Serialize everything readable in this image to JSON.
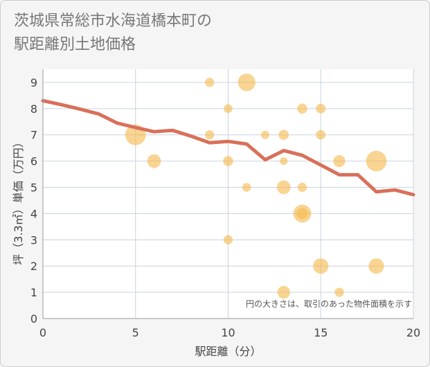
{
  "title": "茨城県常総市水海道橋本町の\n駅距離別土地価格",
  "chart_data": {
    "type": "scatter",
    "title": "茨城県常総市水海道橋本町の駅距離別土地価格",
    "xlabel": "駅距離（分）",
    "ylabel": "坪（3.3㎡）単価（万円）",
    "xlim": [
      0,
      20
    ],
    "ylim": [
      0,
      9.5
    ],
    "x_ticks": [
      "0",
      "5",
      "10",
      "15",
      "20"
    ],
    "y_ticks": [
      "0",
      "1",
      "2",
      "3",
      "4",
      "5",
      "6",
      "7",
      "8",
      "9"
    ],
    "grid": true,
    "note": "円の大きさは、取引のあった物件面積を示す",
    "bubble_color": "#f5b94f",
    "line_color": "#d9705a",
    "points": [
      {
        "x": 5,
        "y": 7.0,
        "size": 5
      },
      {
        "x": 6,
        "y": 6.0,
        "size": 2.2
      },
      {
        "x": 9,
        "y": 9.0,
        "size": 1
      },
      {
        "x": 9,
        "y": 7.0,
        "size": 1
      },
      {
        "x": 10,
        "y": 8.0,
        "size": 0.9
      },
      {
        "x": 10,
        "y": 6.0,
        "size": 1.2
      },
      {
        "x": 10,
        "y": 3.0,
        "size": 1
      },
      {
        "x": 11,
        "y": 9.0,
        "size": 3.6
      },
      {
        "x": 11,
        "y": 5.0,
        "size": 0.9
      },
      {
        "x": 12,
        "y": 7.0,
        "size": 0.8
      },
      {
        "x": 13,
        "y": 7.0,
        "size": 1.2
      },
      {
        "x": 13,
        "y": 6.0,
        "size": 0.7
      },
      {
        "x": 13,
        "y": 5.0,
        "size": 2.2
      },
      {
        "x": 13,
        "y": 1.0,
        "size": 1.9
      },
      {
        "x": 14,
        "y": 8.0,
        "size": 1.2
      },
      {
        "x": 14,
        "y": 5.0,
        "size": 1
      },
      {
        "x": 14,
        "y": 4.0,
        "size": 3.8
      },
      {
        "x": 14,
        "y": 4.0,
        "size": 1.5
      },
      {
        "x": 15,
        "y": 8.0,
        "size": 1.1
      },
      {
        "x": 15,
        "y": 7.0,
        "size": 1.1
      },
      {
        "x": 15,
        "y": 2.0,
        "size": 2.8
      },
      {
        "x": 16,
        "y": 6.0,
        "size": 1.7
      },
      {
        "x": 16,
        "y": 1.0,
        "size": 1
      },
      {
        "x": 18,
        "y": 6.0,
        "size": 5
      },
      {
        "x": 18,
        "y": 2.0,
        "size": 2.8
      }
    ],
    "trend_line": {
      "x": [
        0,
        1,
        2,
        3,
        4,
        5,
        6,
        7,
        8,
        9,
        10,
        11,
        12,
        13,
        14,
        15,
        16,
        17,
        18,
        19,
        20
      ],
      "y": [
        8.3,
        8.15,
        7.98,
        7.8,
        7.45,
        7.28,
        7.12,
        7.17,
        6.95,
        6.7,
        6.75,
        6.65,
        6.05,
        6.4,
        6.22,
        5.85,
        5.48,
        5.48,
        4.83,
        4.9,
        4.72
      ]
    }
  }
}
